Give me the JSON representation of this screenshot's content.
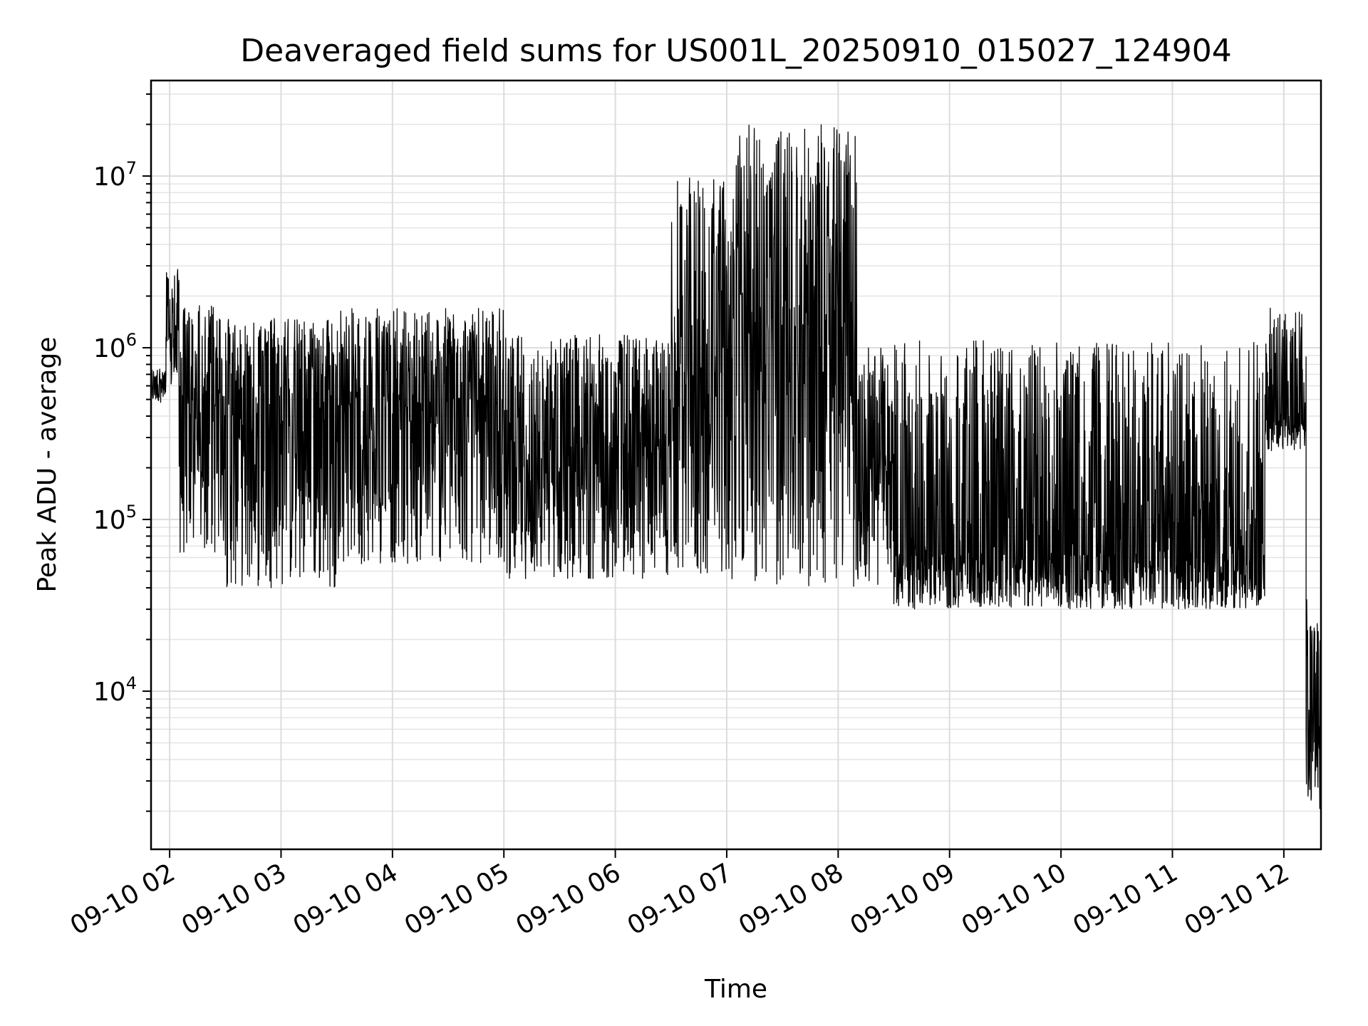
{
  "chart_data": {
    "type": "line",
    "title": "Deaveraged field sums for US001L_20250910_015027_124904",
    "xlabel": "Time",
    "ylabel": "Peak ADU - average",
    "y_scale": "log",
    "grid": true,
    "xlim": [
      "2025-09-10 01:50",
      "2025-09-10 12:20"
    ],
    "ylim": [
      1200,
      36000000
    ],
    "x_ticks": [
      "09-10 02",
      "09-10 03",
      "09-10 04",
      "09-10 05",
      "09-10 06",
      "09-10 07",
      "09-10 08",
      "09-10 09",
      "09-10 10",
      "09-10 11",
      "09-10 12"
    ],
    "y_ticks": [
      {
        "value": 10000,
        "base": "10",
        "exp": "4"
      },
      {
        "value": 100000,
        "base": "10",
        "exp": "5"
      },
      {
        "value": 1000000,
        "base": "10",
        "exp": "6"
      },
      {
        "value": 10000000,
        "base": "10",
        "exp": "7"
      }
    ],
    "series": [
      {
        "color": "#000000",
        "segments": [
          {
            "start": "2025-09-10 01:50",
            "end": "2025-09-10 01:58",
            "baseline": 620000,
            "low": 480000,
            "high": 760000
          },
          {
            "start": "2025-09-10 01:58",
            "end": "2025-09-10 02:05",
            "baseline": 1200000,
            "low": 550000,
            "high": 2900000
          },
          {
            "start": "2025-09-10 02:05",
            "end": "2025-09-10 02:30",
            "baseline": 500000,
            "low": 60000,
            "high": 1800000
          },
          {
            "start": "2025-09-10 02:30",
            "end": "2025-09-10 03:30",
            "baseline": 500000,
            "low": 40000,
            "high": 1500000
          },
          {
            "start": "2025-09-10 03:30",
            "end": "2025-09-10 05:00",
            "baseline": 450000,
            "low": 55000,
            "high": 1700000
          },
          {
            "start": "2025-09-10 05:00",
            "end": "2025-09-10 06:30",
            "baseline": 250000,
            "low": 45000,
            "high": 1200000
          },
          {
            "start": "2025-09-10 06:30",
            "end": "2025-09-10 07:05",
            "baseline": 600000,
            "low": 45000,
            "high": 10000000
          },
          {
            "start": "2025-09-10 07:05",
            "end": "2025-09-10 08:10",
            "baseline": 1200000,
            "low": 40000,
            "high": 20000000
          },
          {
            "start": "2025-09-10 08:10",
            "end": "2025-09-10 08:30",
            "baseline": 200000,
            "low": 40000,
            "high": 1000000
          },
          {
            "start": "2025-09-10 08:30",
            "end": "2025-09-10 11:50",
            "baseline": 60000,
            "low": 30000,
            "high": 1100000
          },
          {
            "start": "2025-09-10 11:50",
            "end": "2025-09-10 12:12",
            "baseline": 400000,
            "low": 250000,
            "high": 1700000
          },
          {
            "start": "2025-09-10 12:12",
            "end": "2025-09-10 12:20",
            "baseline": 6000,
            "low": 1800,
            "high": 35000
          }
        ]
      }
    ]
  }
}
